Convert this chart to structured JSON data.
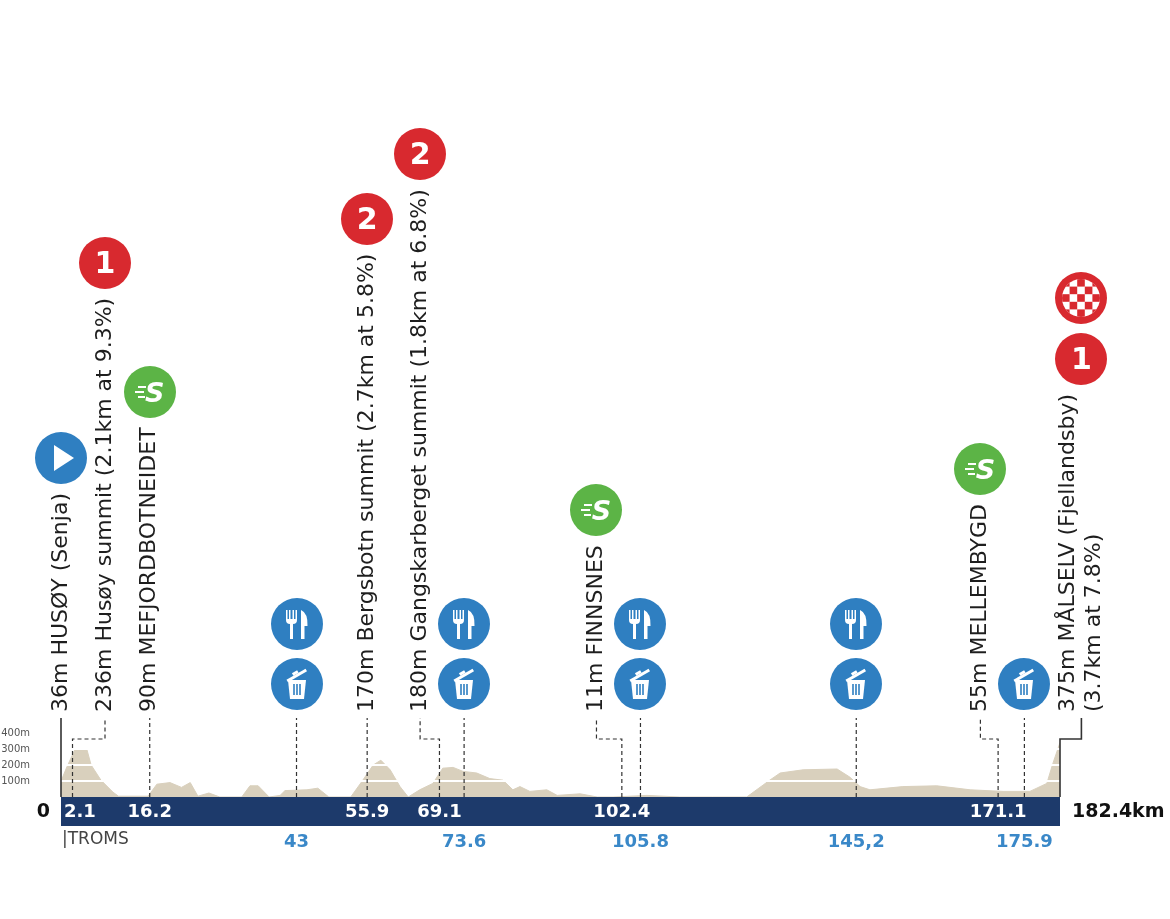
{
  "chart_data": {
    "type": "area",
    "x": [
      0,
      1.1,
      2.6,
      4.7,
      5.5,
      7.3,
      9.5,
      10.5,
      15.9,
      17.5,
      19.9,
      22.0,
      23.6,
      25.0,
      27.0,
      29.0,
      33.0,
      34.5,
      36.0,
      38.0,
      40.0,
      40.9,
      44.9,
      46.9,
      48.9,
      52.9,
      55.0,
      57.0,
      58.4,
      60.1,
      61.9,
      63.4,
      65.5,
      67.9,
      69.7,
      71.6,
      73.4,
      75.9,
      78.3,
      80.7,
      82.5,
      83.8,
      85.6,
      88.7,
      90.6,
      94.8,
      97.9,
      100.8,
      107.0,
      113.0,
      119.0,
      125.2,
      128.2,
      129.4,
      131.3,
      135.5,
      141.7,
      144.0,
      145.9,
      147.7,
      153.7,
      159.9,
      166.0,
      172.0,
      176.9,
      180.0,
      181.1,
      182.4
    ],
    "values": [
      100,
      190,
      300,
      300,
      200,
      105,
      30,
      5,
      5,
      80,
      90,
      60,
      90,
      5,
      25,
      0,
      0,
      70,
      70,
      0,
      10,
      40,
      45,
      55,
      0,
      0,
      100,
      200,
      230,
      170,
      65,
      0,
      45,
      85,
      180,
      185,
      160,
      150,
      115,
      105,
      45,
      65,
      35,
      45,
      10,
      20,
      0,
      0,
      10,
      0,
      0,
      0,
      75,
      105,
      150,
      170,
      175,
      125,
      65,
      45,
      65,
      70,
      45,
      35,
      35,
      85,
      210,
      340
    ],
    "color": "#d9d0bd",
    "xlim": [
      0,
      182.4
    ],
    "xticks": [
      2.1,
      16.2,
      55.9,
      69.1,
      102.4,
      171.1
    ],
    "ylim": [
      0,
      400
    ],
    "yticks": [
      {
        "value": 100,
        "label": "100m"
      },
      {
        "value": 200,
        "label": "200m"
      },
      {
        "value": 300,
        "label": "300m"
      },
      {
        "value": 400,
        "label": "400m"
      }
    ],
    "grid": "y",
    "ref_lines": [
      {
        "axis": "x",
        "value": 0,
        "label": "36m HUSØY (Senja)",
        "line_style": "solid"
      },
      {
        "axis": "x",
        "value": 2.1,
        "label": "236m Husøy summit (2.1km at 9.3%)",
        "line_style": "dashed"
      },
      {
        "axis": "x",
        "value": 16.2,
        "label": "90m MEFJORDBOTNEIDET",
        "line_style": "dashed"
      },
      {
        "axis": "x",
        "value": 43,
        "label": "43",
        "line_style": "dashed"
      },
      {
        "axis": "x",
        "value": 55.9,
        "label": "170m Bergsbotn summit (2.7km at 5.8%)",
        "line_style": "dashed"
      },
      {
        "axis": "x",
        "value": 69.1,
        "label": "180m Gangskarberget summit (1.8km at 6.8%)",
        "line_style": "dashed"
      },
      {
        "axis": "x",
        "value": 73.6,
        "label": "73.6",
        "line_style": "dashed"
      },
      {
        "axis": "x",
        "value": 102.4,
        "label": "11m FINNSNES",
        "line_style": "dashed"
      },
      {
        "axis": "x",
        "value": 105.8,
        "label": "105.8",
        "line_style": "dashed"
      },
      {
        "axis": "x",
        "value": 145.2,
        "label": "145,2",
        "line_style": "dashed"
      },
      {
        "axis": "x",
        "value": 171.1,
        "label": "55m MELLEMBYGD",
        "line_style": "dashed"
      },
      {
        "axis": "x",
        "value": 175.9,
        "label": "175.9",
        "line_style": "dashed"
      },
      {
        "axis": "x",
        "value": 182.4,
        "label": "375m MÅLSELV (Fjellandsby)\n(3.7km at 7.8%)",
        "line_style": "solid"
      }
    ],
    "annotations": [
      "1",
      "S",
      "2",
      "2",
      "S",
      "S",
      "1",
      "0",
      "182.4km",
      "|TROMS"
    ]
  }
}
